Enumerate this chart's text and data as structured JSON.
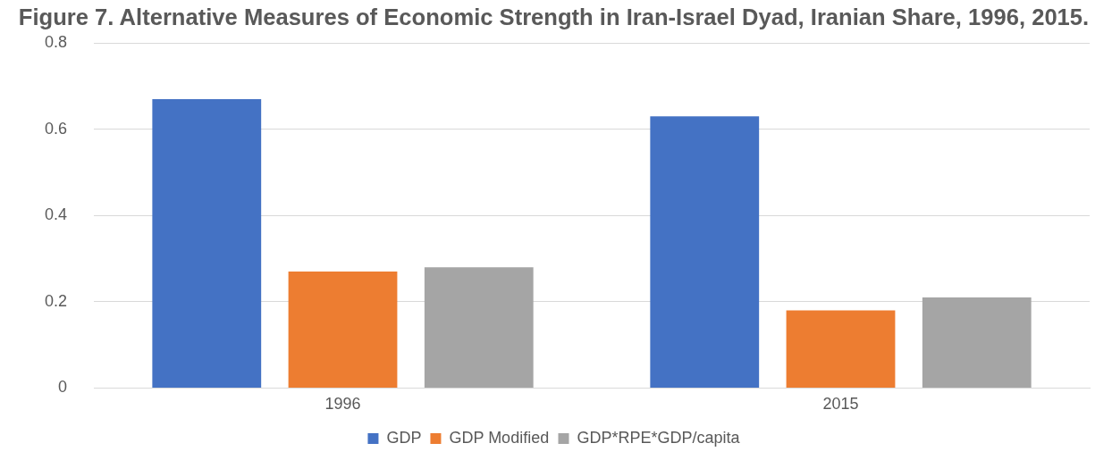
{
  "chart_data": {
    "type": "bar",
    "title": "Figure 7. Alternative Measures of Economic Strength in Iran-Israel Dyad, Iranian Share, 1996, 2015.",
    "categories": [
      "1996",
      "2015"
    ],
    "series": [
      {
        "name": "GDP",
        "color": "#4472c4",
        "values": [
          0.67,
          0.63
        ]
      },
      {
        "name": "GDP Modified",
        "color": "#ed7d31",
        "values": [
          0.27,
          0.18
        ]
      },
      {
        "name": "GDP*RPE*GDP/capita",
        "color": "#a5a5a5",
        "values": [
          0.28,
          0.21
        ]
      }
    ],
    "ylim": [
      0,
      0.8
    ],
    "yticks": [
      0,
      0.2,
      0.4,
      0.6,
      0.8
    ],
    "grid": "y",
    "legend": "bottom"
  }
}
